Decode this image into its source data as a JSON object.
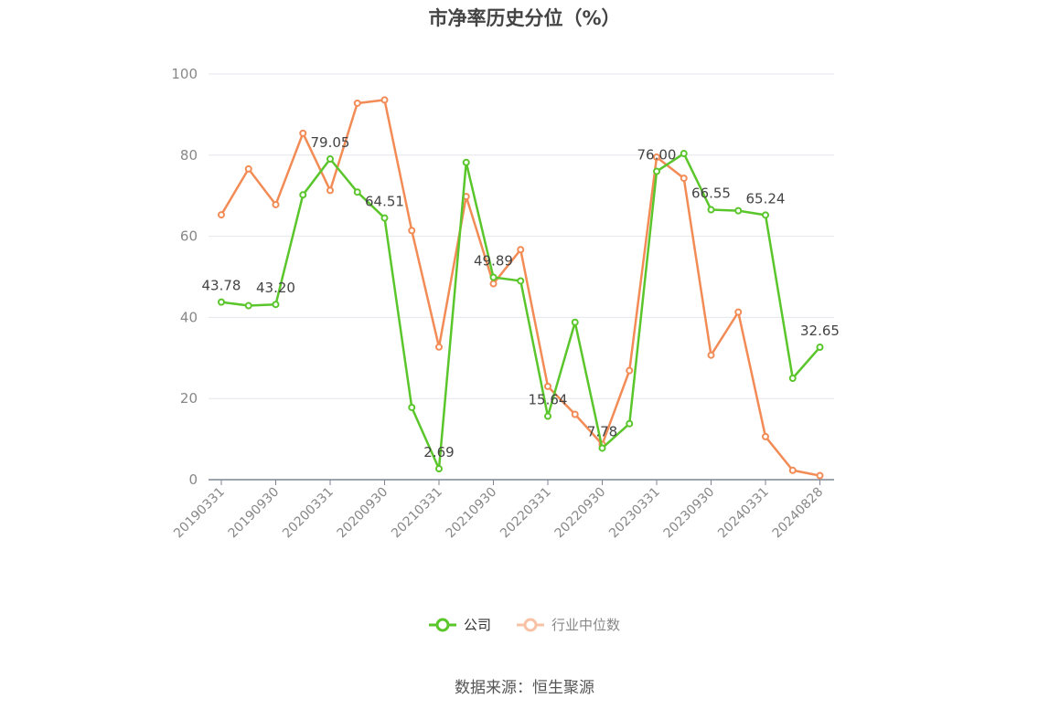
{
  "chart_data": {
    "type": "line",
    "title": "市净率历史分位（%）",
    "source": "数据来源：恒生聚源",
    "ylim": [
      0,
      100
    ],
    "yticks": [
      "0",
      "20",
      "40",
      "60",
      "80",
      "100"
    ],
    "x_tick_labels": [
      "20190331",
      "20190930",
      "20200331",
      "20200930",
      "20210331",
      "20210930",
      "20220331",
      "20220930",
      "20230331",
      "20230930",
      "20240331",
      "20240828"
    ],
    "grid": true,
    "legend_position": "bottom",
    "series": [
      {
        "name": "公司",
        "color": "#5ac62b",
        "values": [
          43.78,
          42.9,
          43.2,
          70.2,
          79.05,
          70.9,
          64.51,
          17.8,
          2.69,
          78.2,
          49.89,
          49.0,
          15.64,
          38.8,
          7.78,
          13.8,
          76.0,
          80.4,
          66.55,
          66.3,
          65.24,
          25.0,
          32.65
        ],
        "labels": [
          "43.78",
          "",
          "43.20",
          "",
          "79.05",
          "",
          "64.51",
          "",
          "2.69",
          "",
          "49.89",
          "",
          "15.64",
          "",
          "7.78",
          "",
          "76.00",
          "",
          "66.55",
          "",
          "65.24",
          "",
          "32.65"
        ]
      },
      {
        "name": "行业中位数",
        "color": "#f28b55",
        "values": [
          65.3,
          76.6,
          67.8,
          85.4,
          71.3,
          92.8,
          93.6,
          61.4,
          32.7,
          69.8,
          48.3,
          56.7,
          23.0,
          16.1,
          8.7,
          26.9,
          79.5,
          74.3,
          30.7,
          41.3,
          10.6,
          2.3,
          1.0
        ]
      }
    ]
  }
}
